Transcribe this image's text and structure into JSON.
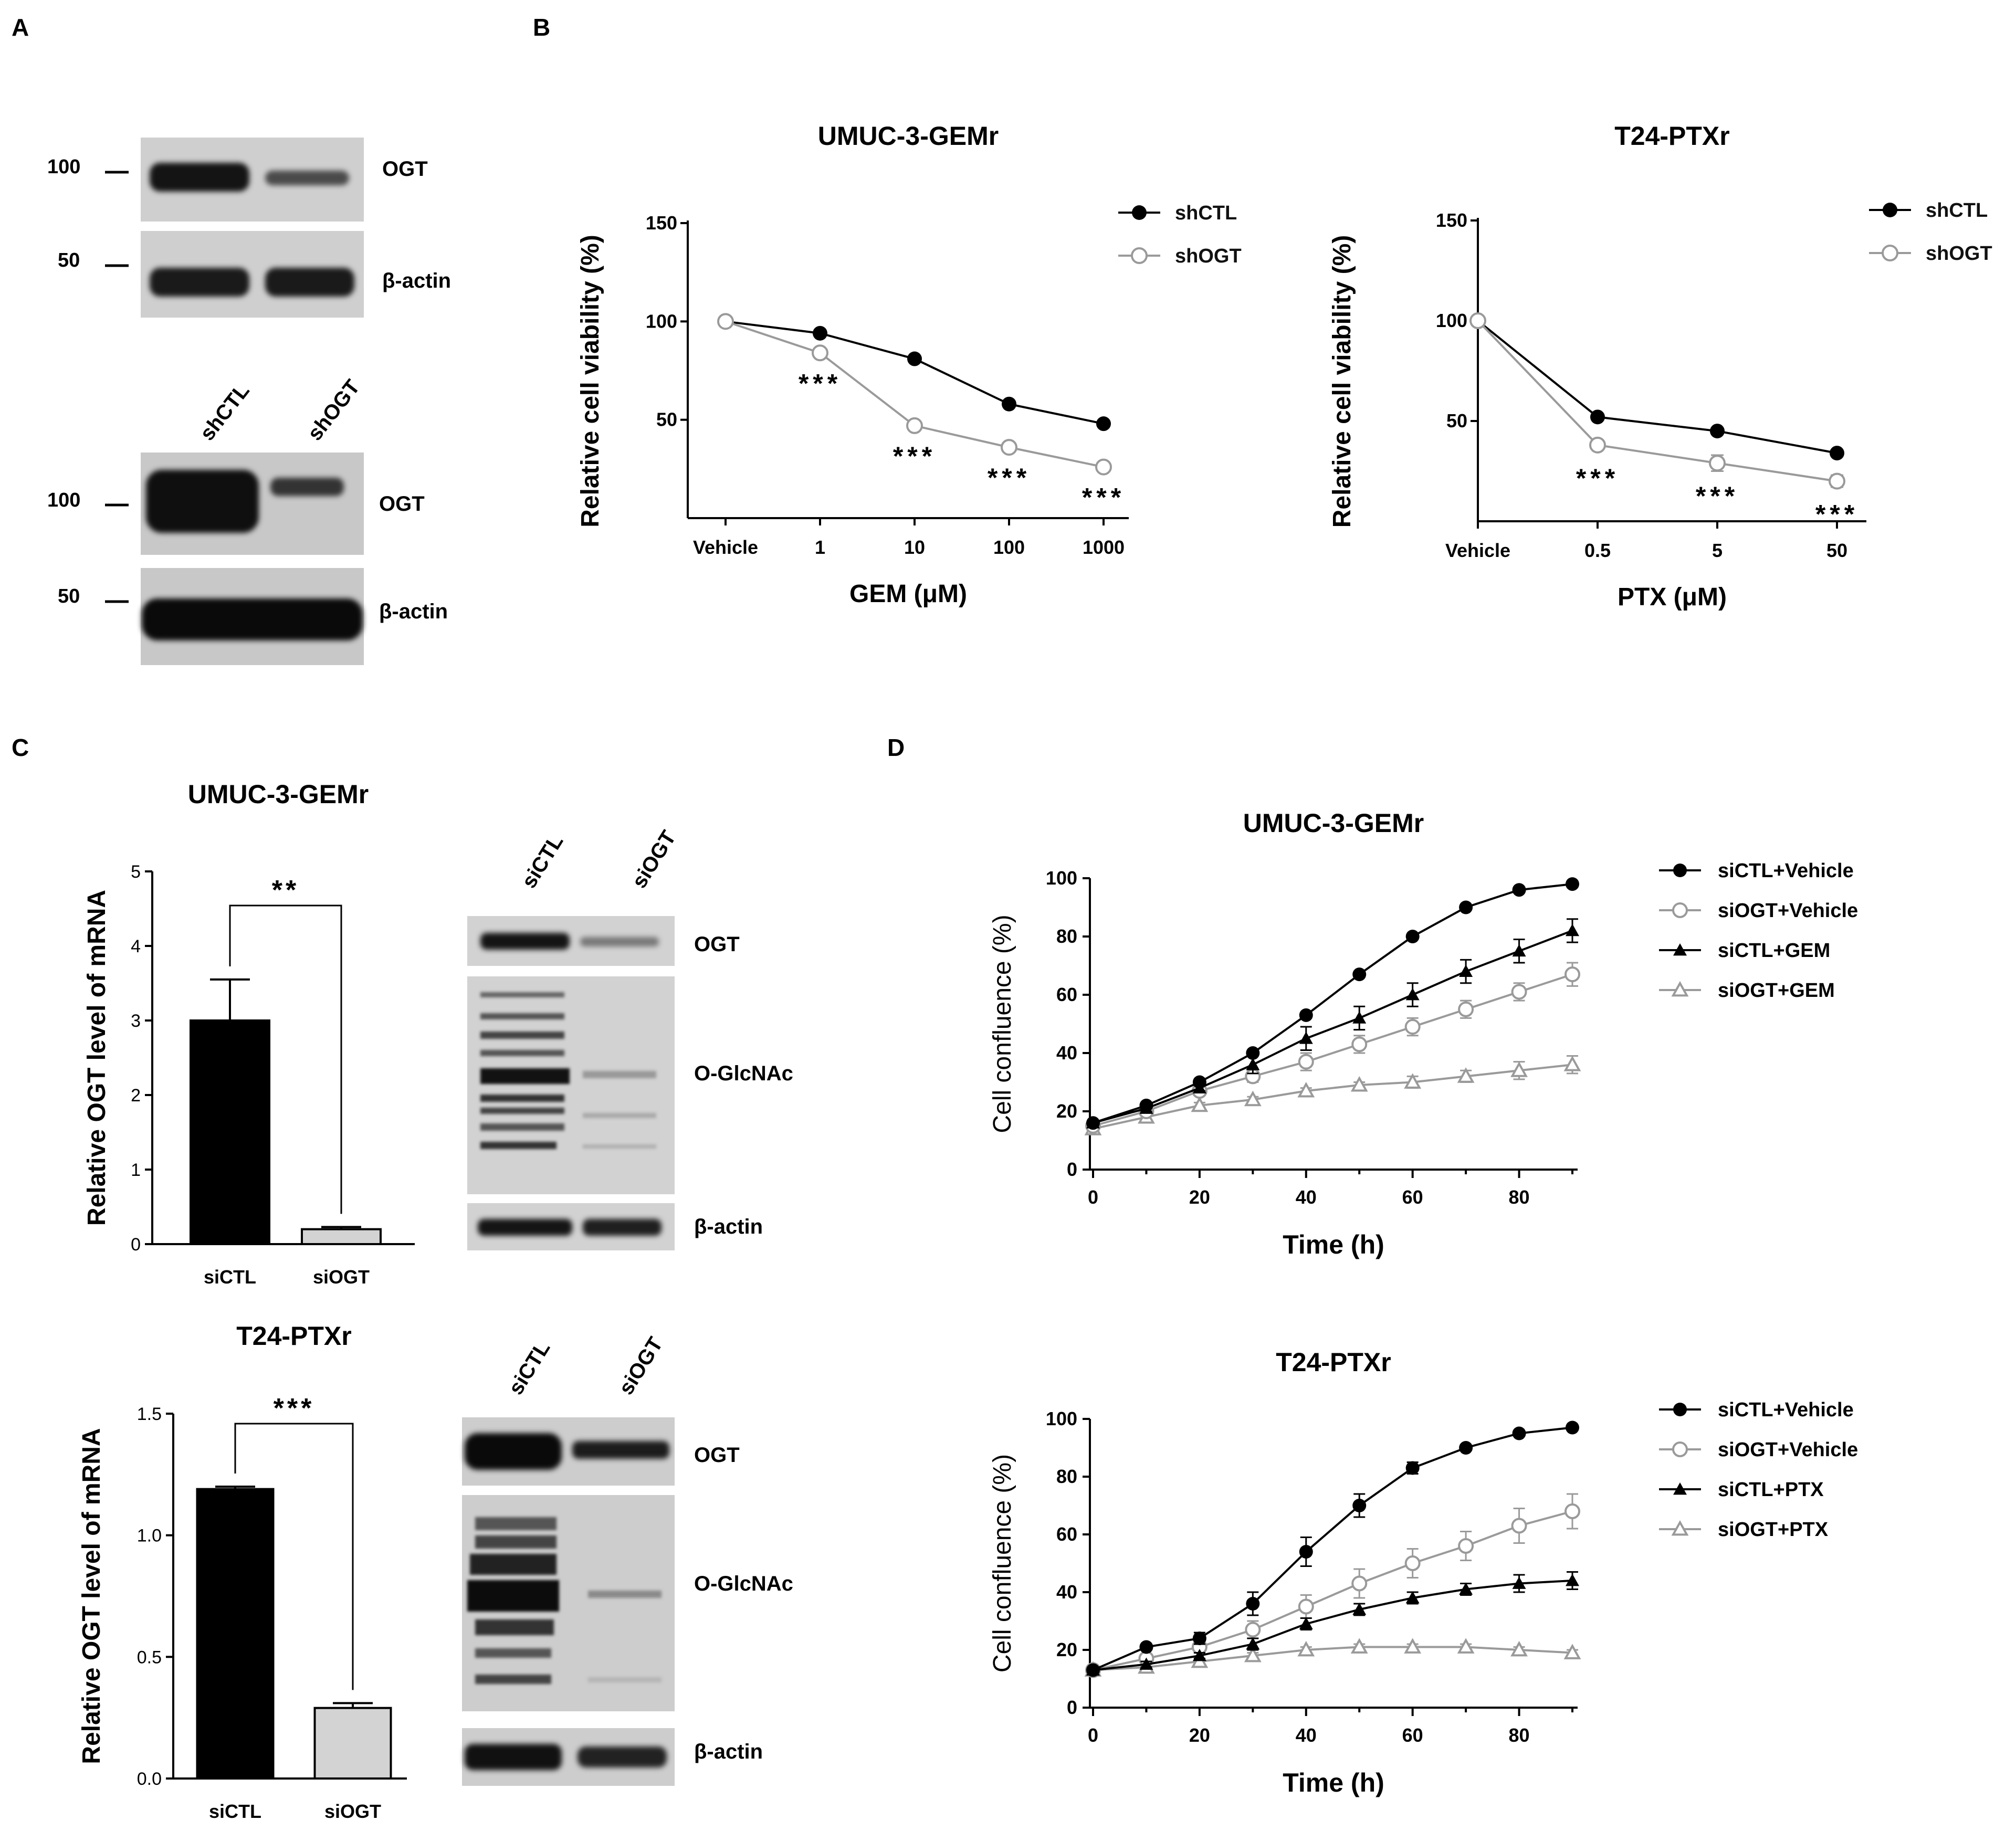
{
  "panels": {
    "A": "A",
    "B": "B",
    "C": "C",
    "D": "D"
  },
  "colors": {
    "black": "#000000",
    "gray": "#9a9a9a",
    "blot_bg": "#cfcfcf",
    "bar_light": "#d3d3d3"
  },
  "panel_a": {
    "blot1": {
      "mw": [
        "100",
        "50"
      ],
      "labels": [
        "OGT",
        "β-actin"
      ]
    },
    "blot2": {
      "lanes": [
        "shCTL",
        "shOGT"
      ],
      "mw": [
        "100",
        "50"
      ],
      "labels": [
        "OGT",
        "β-actin"
      ]
    }
  },
  "panel_c_blots": {
    "top": {
      "lanes": [
        "siCTL",
        "siOGT"
      ],
      "labels": [
        "OGT",
        "O-GlcNAc",
        "β-actin"
      ]
    },
    "bottom": {
      "lanes": [
        "siCTL",
        "siOGT"
      ],
      "labels": [
        "OGT",
        "O-GlcNAc",
        "β-actin"
      ]
    }
  },
  "chart_data": [
    {
      "id": "B-left",
      "type": "line",
      "title": "UMUC-3-GEMr",
      "xlabel": "GEM (μM)",
      "ylabel": "Relative cell viability (%)",
      "categories": [
        "Vehicle",
        "1",
        "10",
        "100",
        "1000"
      ],
      "yticks": [
        "50",
        "100",
        "150"
      ],
      "ylim": [
        0,
        150
      ],
      "series": [
        {
          "name": "shCTL",
          "values": [
            100,
            94,
            81,
            58,
            48
          ],
          "errors": [
            0,
            1,
            1,
            1,
            1
          ]
        },
        {
          "name": "shOGT",
          "values": [
            100,
            84,
            47,
            36,
            26
          ],
          "errors": [
            0,
            1,
            1,
            1,
            1
          ]
        }
      ],
      "annotations": [
        "***",
        "***",
        "***",
        "***"
      ]
    },
    {
      "id": "B-right",
      "type": "line",
      "title": "T24-PTXr",
      "xlabel": "PTX (μM)",
      "ylabel": "Relative cell viability (%)",
      "categories": [
        "Vehicle",
        "0.5",
        "5",
        "50"
      ],
      "yticks": [
        "50",
        "100",
        "150"
      ],
      "ylim": [
        0,
        150
      ],
      "series": [
        {
          "name": "shCTL",
          "values": [
            100,
            52,
            45,
            34
          ],
          "errors": [
            2,
            1,
            1,
            1
          ]
        },
        {
          "name": "shOGT",
          "values": [
            100,
            38,
            29,
            20
          ],
          "errors": [
            2,
            2,
            4,
            3
          ]
        }
      ],
      "annotations": [
        "***",
        "***",
        "***"
      ]
    },
    {
      "id": "C-top",
      "type": "bar",
      "title": "UMUC-3-GEMr",
      "xlabel": "",
      "ylabel": "Relative OGT level of mRNA",
      "categories": [
        "siCTL",
        "siOGT"
      ],
      "values": [
        3.0,
        0.2
      ],
      "errors": [
        0.55,
        0.03
      ],
      "yticks": [
        "0",
        "1",
        "2",
        "3",
        "4",
        "5"
      ],
      "ylim": [
        0,
        5
      ],
      "significance": "**"
    },
    {
      "id": "C-bottom",
      "type": "bar",
      "title": "T24-PTXr",
      "xlabel": "",
      "ylabel": "Relative OGT level of mRNA",
      "categories": [
        "siCTL",
        "siOGT"
      ],
      "values": [
        1.19,
        0.29
      ],
      "errors": [
        0.01,
        0.02
      ],
      "yticks": [
        "0.0",
        "0.5",
        "1.0",
        "1.5"
      ],
      "ylim": [
        0,
        1.5
      ],
      "significance": "***"
    },
    {
      "id": "D-top",
      "type": "line",
      "title": "UMUC-3-GEMr",
      "xlabel": "Time (h)",
      "ylabel": "Cell confluence (%)",
      "x": [
        0,
        10,
        20,
        30,
        40,
        50,
        60,
        70,
        80,
        90
      ],
      "xticks": [
        "0",
        "20",
        "40",
        "60",
        "80"
      ],
      "yticks": [
        "0",
        "20",
        "40",
        "60",
        "80",
        "100"
      ],
      "xlim": [
        0,
        90
      ],
      "ylim": [
        0,
        100
      ],
      "series": [
        {
          "name": "siCTL+Vehicle",
          "values": [
            16,
            22,
            30,
            40,
            53,
            67,
            80,
            90,
            96,
            98
          ],
          "errors": [
            0,
            1,
            1,
            1,
            1,
            1,
            1,
            1,
            1,
            1
          ]
        },
        {
          "name": "siOGT+Vehicle",
          "values": [
            15,
            20,
            27,
            32,
            37,
            43,
            49,
            55,
            61,
            67
          ],
          "errors": [
            0,
            1,
            1,
            2,
            3,
            3,
            3,
            3,
            3,
            4
          ]
        },
        {
          "name": "siCTL+GEM",
          "values": [
            16,
            21,
            28,
            36,
            45,
            52,
            60,
            68,
            75,
            82
          ],
          "errors": [
            0,
            1,
            1,
            3,
            4,
            4,
            4,
            4,
            4,
            4
          ]
        },
        {
          "name": "siOGT+GEM",
          "values": [
            14,
            18,
            22,
            24,
            27,
            29,
            30,
            32,
            34,
            36
          ],
          "errors": [
            0,
            1,
            1,
            1,
            1,
            1,
            2,
            2,
            3,
            3
          ]
        }
      ]
    },
    {
      "id": "D-bottom",
      "type": "line",
      "title": "T24-PTXr",
      "xlabel": "Time (h)",
      "ylabel": "Cell confluence (%)",
      "x": [
        0,
        10,
        20,
        30,
        40,
        50,
        60,
        70,
        80,
        90
      ],
      "xticks": [
        "0",
        "20",
        "40",
        "60",
        "80"
      ],
      "yticks": [
        "0",
        "20",
        "40",
        "60",
        "80",
        "100"
      ],
      "xlim": [
        0,
        90
      ],
      "ylim": [
        0,
        100
      ],
      "series": [
        {
          "name": "siCTL+Vehicle",
          "values": [
            13,
            21,
            24,
            36,
            54,
            70,
            83,
            90,
            95,
            97
          ],
          "errors": [
            0,
            1,
            2,
            4,
            5,
            4,
            2,
            1,
            1,
            1
          ]
        },
        {
          "name": "siOGT+Vehicle",
          "values": [
            13,
            17,
            21,
            27,
            35,
            43,
            50,
            56,
            63,
            68
          ],
          "errors": [
            0,
            1,
            2,
            3,
            4,
            5,
            5,
            5,
            6,
            6
          ]
        },
        {
          "name": "siCTL+PTX",
          "values": [
            13,
            15,
            18,
            22,
            29,
            34,
            38,
            41,
            43,
            44
          ],
          "errors": [
            0,
            1,
            1,
            2,
            2,
            2,
            2,
            2,
            3,
            3
          ]
        },
        {
          "name": "siOGT+PTX",
          "values": [
            13,
            14,
            16,
            18,
            20,
            21,
            21,
            21,
            20,
            19
          ],
          "errors": [
            0,
            1,
            1,
            1,
            1,
            1,
            1,
            1,
            1,
            1
          ]
        }
      ]
    }
  ]
}
